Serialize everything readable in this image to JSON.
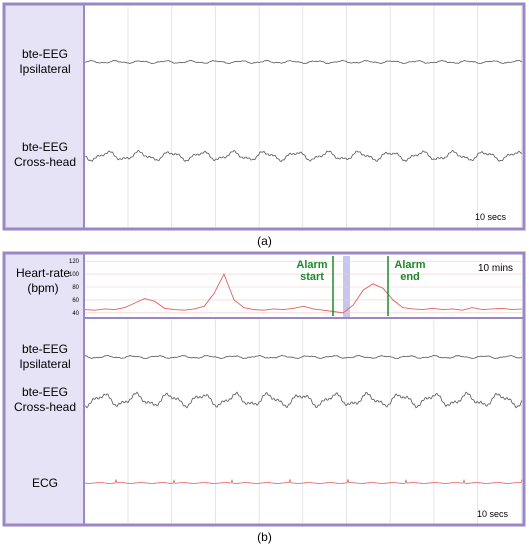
{
  "figure": {
    "panel_a": {
      "labels": [
        "bte-EEG Ipsilateral",
        "bte-EEG Cross-head"
      ],
      "scale": "10 secs",
      "caption": "(a)"
    },
    "panel_b": {
      "labels": [
        "bte-EEG Ipsilateral",
        "bte-EEG Cross-head",
        "ECG"
      ],
      "scale": "10 secs",
      "caption": "(b)"
    }
  },
  "chart_data": {
    "type": "line",
    "y_label": "Heart-rate (bpm)",
    "scale": "10 mins",
    "annotations": [
      "Alarm start",
      "Alarm end"
    ],
    "color": "#e06060",
    "grid": true,
    "ylim": [
      35,
      125
    ],
    "yticks": [
      40,
      60,
      80,
      100,
      120
    ],
    "values": [
      45,
      44,
      46,
      45,
      48,
      55,
      62,
      58,
      47,
      45,
      44,
      46,
      50,
      70,
      100,
      60,
      48,
      45,
      44,
      46,
      45,
      47,
      50,
      46,
      44,
      42,
      40,
      52,
      75,
      85,
      78,
      60,
      48,
      46,
      45,
      47,
      45,
      46,
      44,
      48,
      45,
      46,
      47,
      45,
      46
    ]
  }
}
